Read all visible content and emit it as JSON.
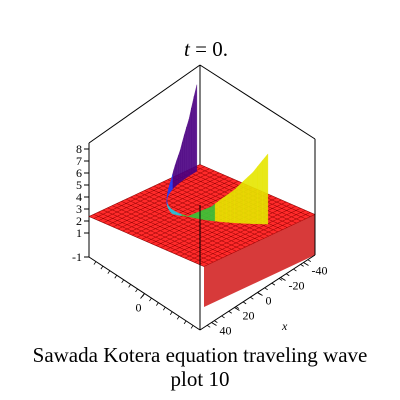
{
  "caption": {
    "line1": "Sawada Kotera equation  traveling wave",
    "line2": "plot 10"
  },
  "chart_data": {
    "type": "surface3d",
    "title": "t = 0.",
    "title_var": "t",
    "title_rest": " = 0.",
    "xlabel": "x",
    "ylabel": "",
    "zlabel": "",
    "xlim": [
      -50,
      50
    ],
    "ylim": [
      -50,
      50
    ],
    "zlim": [
      -1,
      8.5
    ],
    "baseline_z": 2,
    "z_tick_labels": [
      "8",
      "7",
      "6",
      "5",
      "4",
      "3",
      "2",
      "1",
      "-1"
    ],
    "z_ticks": [
      8,
      7,
      6,
      5,
      4,
      3,
      2,
      1,
      -1
    ],
    "x_tick_labels": [
      "-40",
      "-20",
      "0",
      "20",
      "40"
    ],
    "x_ticks": [
      -40,
      -20,
      0,
      20,
      40
    ],
    "y_tick_labels": [
      "0"
    ],
    "y_ticks": [
      0
    ],
    "grid": false,
    "surface_color": "#ff2a2a",
    "mesh_color": "#8b0000",
    "wave_colors": [
      "#4b0082",
      "#1f3fff",
      "#22c7e0",
      "#38c838",
      "#e6e600"
    ],
    "wave_profile": [
      {
        "s": 0.0,
        "z": 8.4
      },
      {
        "s": 0.05,
        "z": 6.2
      },
      {
        "s": 0.12,
        "z": 4.3
      },
      {
        "s": 0.22,
        "z": 2.8
      },
      {
        "s": 0.35,
        "z": 1.9
      },
      {
        "s": 0.5,
        "z": 1.7
      },
      {
        "s": 0.65,
        "z": 2.0
      },
      {
        "s": 0.78,
        "z": 3.0
      },
      {
        "s": 0.88,
        "z": 4.4
      },
      {
        "s": 0.95,
        "z": 5.8
      },
      {
        "s": 1.0,
        "z": 7.2
      }
    ]
  }
}
